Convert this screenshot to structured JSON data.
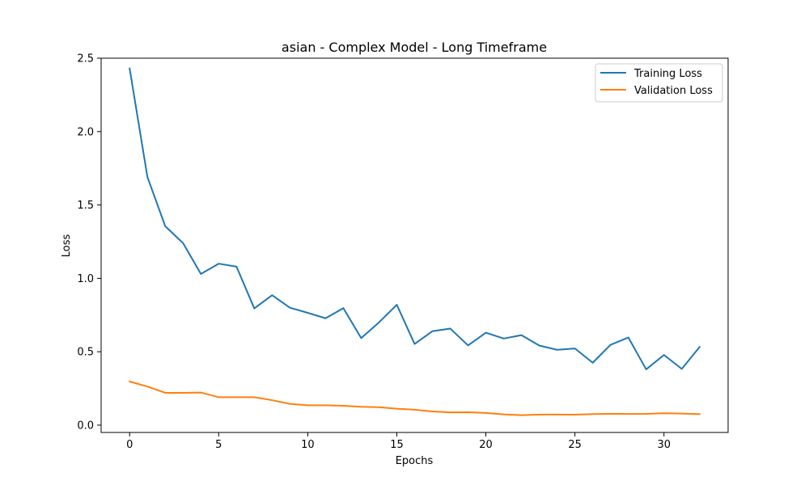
{
  "chart_data": {
    "type": "line",
    "title": "asian - Complex Model - Long Timeframe",
    "xlabel": "Epochs",
    "ylabel": "Loss",
    "xlim": [
      -1.6,
      33.6
    ],
    "ylim": [
      -0.05,
      2.5
    ],
    "xticks": [
      0,
      5,
      10,
      15,
      20,
      25,
      30
    ],
    "xtick_labels": [
      "0",
      "5",
      "10",
      "15",
      "20",
      "25",
      "30"
    ],
    "yticks": [
      0.0,
      0.5,
      1.0,
      1.5,
      2.0,
      2.5
    ],
    "ytick_labels": [
      "0.0",
      "0.5",
      "1.0",
      "1.5",
      "2.0",
      "2.5"
    ],
    "grid": false,
    "legend_position": "top-right",
    "x": [
      0,
      1,
      2,
      3,
      4,
      5,
      6,
      7,
      8,
      9,
      10,
      11,
      12,
      13,
      14,
      15,
      16,
      17,
      18,
      19,
      20,
      21,
      22,
      23,
      24,
      25,
      26,
      27,
      28,
      29,
      30,
      31,
      32
    ],
    "series": [
      {
        "name": "Training Loss",
        "color": "#1f77b4",
        "values": [
          2.43,
          1.69,
          1.355,
          1.24,
          1.03,
          1.1,
          1.08,
          0.795,
          0.885,
          0.8,
          0.765,
          0.728,
          0.797,
          0.593,
          0.7,
          0.82,
          0.553,
          0.64,
          0.658,
          0.543,
          0.63,
          0.59,
          0.613,
          0.542,
          0.513,
          0.522,
          0.425,
          0.547,
          0.597,
          0.38,
          0.478,
          0.383,
          0.532
        ]
      },
      {
        "name": "Validation Loss",
        "color": "#ff7f0e",
        "values": [
          0.297,
          0.263,
          0.22,
          0.22,
          0.222,
          0.19,
          0.19,
          0.19,
          0.17,
          0.145,
          0.135,
          0.135,
          0.132,
          0.125,
          0.122,
          0.112,
          0.105,
          0.093,
          0.087,
          0.088,
          0.083,
          0.073,
          0.068,
          0.072,
          0.072,
          0.071,
          0.075,
          0.077,
          0.076,
          0.077,
          0.081,
          0.079,
          0.075
        ]
      }
    ]
  }
}
